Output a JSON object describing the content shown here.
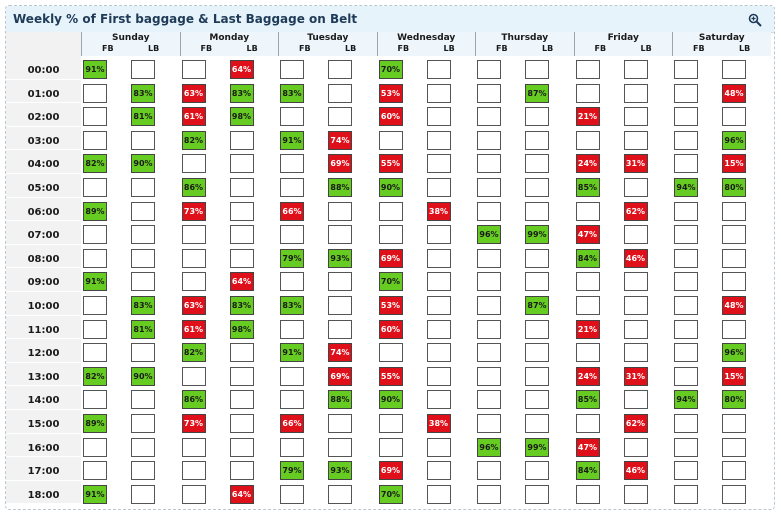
{
  "title": "Weekly % of First baggage & Last Baggage on Belt",
  "zoom_icon": "zoom-in-icon",
  "colors": {
    "good": "#66cc22",
    "bad": "#e0101a",
    "empty": "#ffffff"
  },
  "sub_labels": [
    "FB",
    "LB"
  ],
  "days": [
    "Sunday",
    "Monday",
    "Tuesday",
    "Wednesday",
    "Thursday",
    "Friday",
    "Saturday"
  ],
  "times": [
    "00:00",
    "01:00",
    "02:00",
    "03:00",
    "04:00",
    "05:00",
    "06:00",
    "07:00",
    "08:00",
    "09:00",
    "10:00",
    "11:00",
    "12:00",
    "13:00",
    "14:00",
    "15:00",
    "16:00",
    "17:00",
    "18:00"
  ],
  "cells": [
    [
      "91%",
      "",
      "",
      "64%",
      "",
      "",
      "70%",
      "",
      "",
      "",
      "",
      "",
      "",
      ""
    ],
    [
      "",
      "83%",
      "63%",
      "83%",
      "83%",
      "",
      "53%",
      "",
      "",
      "87%",
      "",
      "",
      "",
      "48%"
    ],
    [
      "",
      "81%",
      "61%",
      "98%",
      "",
      "",
      "60%",
      "",
      "",
      "",
      "21%",
      "",
      "",
      ""
    ],
    [
      "",
      "",
      "82%",
      "",
      "91%",
      "74%",
      "",
      "",
      "",
      "",
      "",
      "",
      "",
      "96%"
    ],
    [
      "82%",
      "90%",
      "",
      "",
      "",
      "69%",
      "55%",
      "",
      "",
      "",
      "24%",
      "31%",
      "",
      "15%"
    ],
    [
      "",
      "",
      "86%",
      "",
      "",
      "88%",
      "90%",
      "",
      "",
      "",
      "85%",
      "",
      "94%",
      "80%"
    ],
    [
      "89%",
      "",
      "73%",
      "",
      "66%",
      "",
      "",
      "38%",
      "",
      "",
      "",
      "62%",
      "",
      ""
    ],
    [
      "",
      "",
      "",
      "",
      "",
      "",
      "",
      "",
      "96%",
      "99%",
      "47%",
      "",
      "",
      ""
    ],
    [
      "",
      "",
      "",
      "",
      "79%",
      "93%",
      "69%",
      "",
      "",
      "",
      "84%",
      "46%",
      "",
      ""
    ],
    [
      "91%",
      "",
      "",
      "64%",
      "",
      "",
      "70%",
      "",
      "",
      "",
      "",
      "",
      "",
      ""
    ],
    [
      "",
      "83%",
      "63%",
      "83%",
      "83%",
      "",
      "53%",
      "",
      "",
      "87%",
      "",
      "",
      "",
      "48%"
    ],
    [
      "",
      "81%",
      "61%",
      "98%",
      "",
      "",
      "60%",
      "",
      "",
      "",
      "21%",
      "",
      "",
      ""
    ],
    [
      "",
      "",
      "82%",
      "",
      "91%",
      "74%",
      "",
      "",
      "",
      "",
      "",
      "",
      "",
      "96%"
    ],
    [
      "82%",
      "90%",
      "",
      "",
      "",
      "69%",
      "55%",
      "",
      "",
      "",
      "24%",
      "31%",
      "",
      "15%"
    ],
    [
      "",
      "",
      "86%",
      "",
      "",
      "88%",
      "90%",
      "",
      "",
      "",
      "85%",
      "",
      "94%",
      "80%"
    ],
    [
      "89%",
      "",
      "73%",
      "",
      "66%",
      "",
      "",
      "38%",
      "",
      "",
      "",
      "62%",
      "",
      ""
    ],
    [
      "",
      "",
      "",
      "",
      "",
      "",
      "",
      "",
      "96%",
      "99%",
      "47%",
      "",
      "",
      ""
    ],
    [
      "",
      "",
      "",
      "",
      "79%",
      "93%",
      "69%",
      "",
      "",
      "",
      "84%",
      "46%",
      "",
      ""
    ],
    [
      "91%",
      "",
      "",
      "64%",
      "",
      "",
      "70%",
      "",
      "",
      "",
      "",
      "",
      "",
      ""
    ]
  ],
  "cell_status": [
    [
      "g",
      "",
      "",
      "r",
      "",
      "",
      "g",
      "",
      "",
      "",
      "",
      "",
      "",
      ""
    ],
    [
      "",
      "g",
      "r",
      "g",
      "g",
      "",
      "r",
      "",
      "",
      "g",
      "",
      "",
      "",
      "r"
    ],
    [
      "",
      "g",
      "r",
      "g",
      "",
      "",
      "r",
      "",
      "",
      "",
      "r",
      "",
      "",
      ""
    ],
    [
      "",
      "",
      "g",
      "",
      "g",
      "r",
      "",
      "",
      "",
      "",
      "",
      "",
      "",
      "g"
    ],
    [
      "g",
      "g",
      "",
      "",
      "",
      "r",
      "r",
      "",
      "",
      "",
      "r",
      "r",
      "",
      "r"
    ],
    [
      "",
      "",
      "g",
      "",
      "",
      "g",
      "g",
      "",
      "",
      "",
      "g",
      "",
      "g",
      "g"
    ],
    [
      "g",
      "",
      "r",
      "",
      "r",
      "",
      "",
      "r",
      "",
      "",
      "",
      "r",
      "",
      ""
    ],
    [
      "",
      "",
      "",
      "",
      "",
      "",
      "",
      "",
      "g",
      "g",
      "r",
      "",
      "",
      ""
    ],
    [
      "",
      "",
      "",
      "",
      "g",
      "g",
      "r",
      "",
      "",
      "",
      "g",
      "r",
      "",
      ""
    ],
    [
      "g",
      "",
      "",
      "r",
      "",
      "",
      "g",
      "",
      "",
      "",
      "",
      "",
      "",
      ""
    ],
    [
      "",
      "g",
      "r",
      "g",
      "g",
      "",
      "r",
      "",
      "",
      "g",
      "",
      "",
      "",
      "r"
    ],
    [
      "",
      "g",
      "r",
      "g",
      "",
      "",
      "r",
      "",
      "",
      "",
      "r",
      "",
      "",
      ""
    ],
    [
      "",
      "",
      "g",
      "",
      "g",
      "r",
      "",
      "",
      "",
      "",
      "",
      "",
      "",
      "g"
    ],
    [
      "g",
      "g",
      "",
      "",
      "",
      "r",
      "r",
      "",
      "",
      "",
      "r",
      "r",
      "",
      "r"
    ],
    [
      "",
      "",
      "g",
      "",
      "",
      "g",
      "g",
      "",
      "",
      "",
      "g",
      "",
      "g",
      "g"
    ],
    [
      "g",
      "",
      "r",
      "",
      "r",
      "",
      "",
      "r",
      "",
      "",
      "",
      "r",
      "",
      ""
    ],
    [
      "",
      "",
      "",
      "",
      "",
      "",
      "",
      "",
      "g",
      "g",
      "r",
      "",
      "",
      ""
    ],
    [
      "",
      "",
      "",
      "",
      "g",
      "g",
      "r",
      "",
      "",
      "",
      "g",
      "r",
      "",
      ""
    ],
    [
      "g",
      "",
      "",
      "r",
      "",
      "",
      "g",
      "",
      "",
      "",
      "",
      "",
      "",
      ""
    ]
  ]
}
